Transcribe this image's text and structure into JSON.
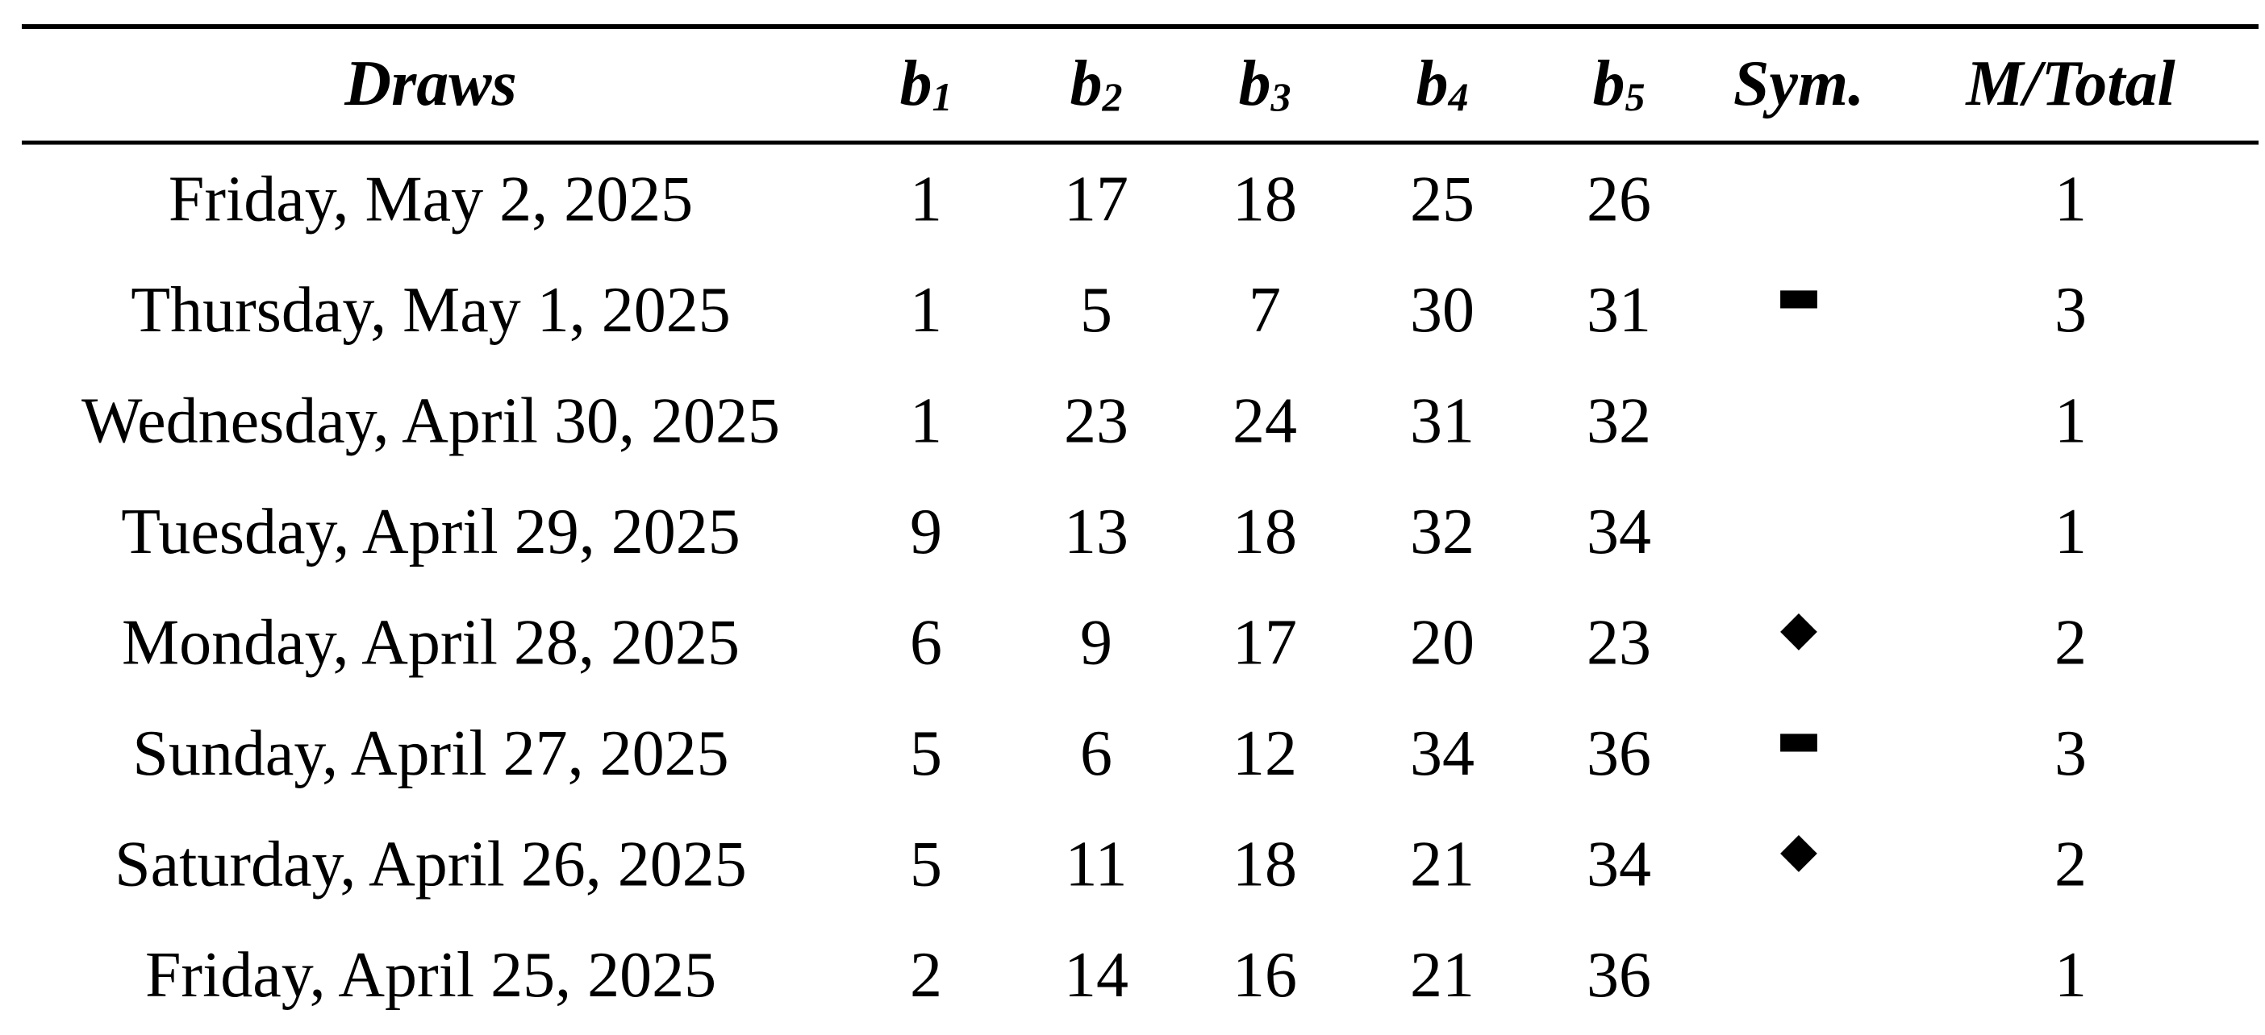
{
  "table": {
    "header": [
      {
        "text": "Draws"
      },
      {
        "text": "b",
        "sub": "1"
      },
      {
        "text": "b",
        "sub": "2"
      },
      {
        "text": "b",
        "sub": "3"
      },
      {
        "text": "b",
        "sub": "4"
      },
      {
        "text": "b",
        "sub": "5"
      },
      {
        "text": "Sym."
      },
      {
        "text": "M/Total"
      }
    ],
    "rows": [
      [
        "Friday, May 2, 2025",
        1,
        17,
        18,
        25,
        26,
        null,
        1
      ],
      [
        "Thursday, May 1, 2025",
        1,
        5,
        7,
        30,
        31,
        "▬",
        3
      ],
      [
        "Wednesday, April 30, 2025",
        1,
        23,
        24,
        31,
        32,
        null,
        1
      ],
      [
        "Tuesday, April 29, 2025",
        9,
        13,
        18,
        32,
        34,
        null,
        1
      ],
      [
        "Monday, April 28, 2025",
        6,
        9,
        17,
        20,
        23,
        "◆",
        2
      ],
      [
        "Sunday, April 27, 2025",
        5,
        6,
        12,
        34,
        36,
        "▬",
        3
      ],
      [
        "Saturday, April 26, 2025",
        5,
        11,
        18,
        21,
        34,
        "◆",
        2
      ],
      [
        "Friday, April 25, 2025",
        2,
        14,
        16,
        21,
        36,
        null,
        1
      ]
    ]
  }
}
